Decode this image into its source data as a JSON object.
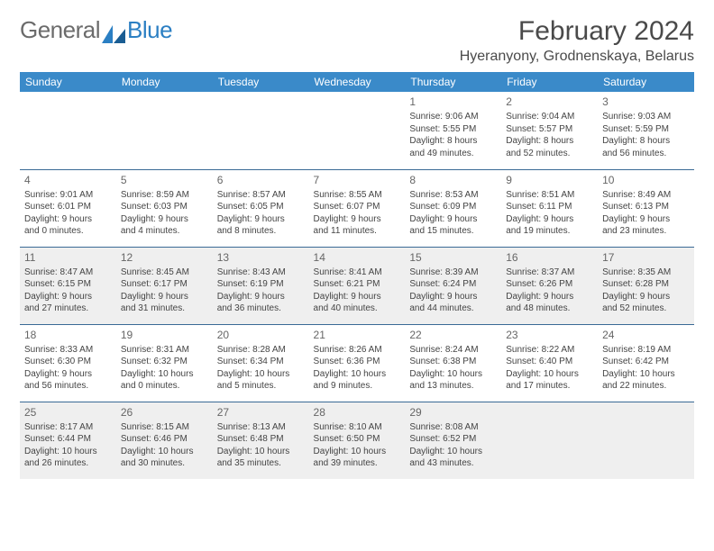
{
  "logo": {
    "text1": "General",
    "text2": "Blue"
  },
  "title": "February 2024",
  "location": "Hyeranyony, Grodnenskaya, Belarus",
  "colors": {
    "header_bg": "#3a8ac9",
    "header_text": "#ffffff",
    "cell_border": "#3a6a95",
    "shaded_bg": "#efefef",
    "text": "#444444",
    "logo_gray": "#6b6b6b",
    "logo_blue": "#2b7fc3"
  },
  "fonts": {
    "title_size": 30,
    "location_size": 16,
    "dayhead_size": 12,
    "cell_size": 10
  },
  "dayHeaders": [
    "Sunday",
    "Monday",
    "Tuesday",
    "Wednesday",
    "Thursday",
    "Friday",
    "Saturday"
  ],
  "weeks": [
    [
      null,
      null,
      null,
      null,
      {
        "n": "1",
        "sr": "Sunrise: 9:06 AM",
        "ss": "Sunset: 5:55 PM",
        "d1": "Daylight: 8 hours",
        "d2": "and 49 minutes."
      },
      {
        "n": "2",
        "sr": "Sunrise: 9:04 AM",
        "ss": "Sunset: 5:57 PM",
        "d1": "Daylight: 8 hours",
        "d2": "and 52 minutes."
      },
      {
        "n": "3",
        "sr": "Sunrise: 9:03 AM",
        "ss": "Sunset: 5:59 PM",
        "d1": "Daylight: 8 hours",
        "d2": "and 56 minutes."
      }
    ],
    [
      {
        "n": "4",
        "sr": "Sunrise: 9:01 AM",
        "ss": "Sunset: 6:01 PM",
        "d1": "Daylight: 9 hours",
        "d2": "and 0 minutes."
      },
      {
        "n": "5",
        "sr": "Sunrise: 8:59 AM",
        "ss": "Sunset: 6:03 PM",
        "d1": "Daylight: 9 hours",
        "d2": "and 4 minutes."
      },
      {
        "n": "6",
        "sr": "Sunrise: 8:57 AM",
        "ss": "Sunset: 6:05 PM",
        "d1": "Daylight: 9 hours",
        "d2": "and 8 minutes."
      },
      {
        "n": "7",
        "sr": "Sunrise: 8:55 AM",
        "ss": "Sunset: 6:07 PM",
        "d1": "Daylight: 9 hours",
        "d2": "and 11 minutes."
      },
      {
        "n": "8",
        "sr": "Sunrise: 8:53 AM",
        "ss": "Sunset: 6:09 PM",
        "d1": "Daylight: 9 hours",
        "d2": "and 15 minutes."
      },
      {
        "n": "9",
        "sr": "Sunrise: 8:51 AM",
        "ss": "Sunset: 6:11 PM",
        "d1": "Daylight: 9 hours",
        "d2": "and 19 minutes."
      },
      {
        "n": "10",
        "sr": "Sunrise: 8:49 AM",
        "ss": "Sunset: 6:13 PM",
        "d1": "Daylight: 9 hours",
        "d2": "and 23 minutes."
      }
    ],
    [
      {
        "n": "11",
        "sr": "Sunrise: 8:47 AM",
        "ss": "Sunset: 6:15 PM",
        "d1": "Daylight: 9 hours",
        "d2": "and 27 minutes."
      },
      {
        "n": "12",
        "sr": "Sunrise: 8:45 AM",
        "ss": "Sunset: 6:17 PM",
        "d1": "Daylight: 9 hours",
        "d2": "and 31 minutes."
      },
      {
        "n": "13",
        "sr": "Sunrise: 8:43 AM",
        "ss": "Sunset: 6:19 PM",
        "d1": "Daylight: 9 hours",
        "d2": "and 36 minutes."
      },
      {
        "n": "14",
        "sr": "Sunrise: 8:41 AM",
        "ss": "Sunset: 6:21 PM",
        "d1": "Daylight: 9 hours",
        "d2": "and 40 minutes."
      },
      {
        "n": "15",
        "sr": "Sunrise: 8:39 AM",
        "ss": "Sunset: 6:24 PM",
        "d1": "Daylight: 9 hours",
        "d2": "and 44 minutes."
      },
      {
        "n": "16",
        "sr": "Sunrise: 8:37 AM",
        "ss": "Sunset: 6:26 PM",
        "d1": "Daylight: 9 hours",
        "d2": "and 48 minutes."
      },
      {
        "n": "17",
        "sr": "Sunrise: 8:35 AM",
        "ss": "Sunset: 6:28 PM",
        "d1": "Daylight: 9 hours",
        "d2": "and 52 minutes."
      }
    ],
    [
      {
        "n": "18",
        "sr": "Sunrise: 8:33 AM",
        "ss": "Sunset: 6:30 PM",
        "d1": "Daylight: 9 hours",
        "d2": "and 56 minutes."
      },
      {
        "n": "19",
        "sr": "Sunrise: 8:31 AM",
        "ss": "Sunset: 6:32 PM",
        "d1": "Daylight: 10 hours",
        "d2": "and 0 minutes."
      },
      {
        "n": "20",
        "sr": "Sunrise: 8:28 AM",
        "ss": "Sunset: 6:34 PM",
        "d1": "Daylight: 10 hours",
        "d2": "and 5 minutes."
      },
      {
        "n": "21",
        "sr": "Sunrise: 8:26 AM",
        "ss": "Sunset: 6:36 PM",
        "d1": "Daylight: 10 hours",
        "d2": "and 9 minutes."
      },
      {
        "n": "22",
        "sr": "Sunrise: 8:24 AM",
        "ss": "Sunset: 6:38 PM",
        "d1": "Daylight: 10 hours",
        "d2": "and 13 minutes."
      },
      {
        "n": "23",
        "sr": "Sunrise: 8:22 AM",
        "ss": "Sunset: 6:40 PM",
        "d1": "Daylight: 10 hours",
        "d2": "and 17 minutes."
      },
      {
        "n": "24",
        "sr": "Sunrise: 8:19 AM",
        "ss": "Sunset: 6:42 PM",
        "d1": "Daylight: 10 hours",
        "d2": "and 22 minutes."
      }
    ],
    [
      {
        "n": "25",
        "sr": "Sunrise: 8:17 AM",
        "ss": "Sunset: 6:44 PM",
        "d1": "Daylight: 10 hours",
        "d2": "and 26 minutes."
      },
      {
        "n": "26",
        "sr": "Sunrise: 8:15 AM",
        "ss": "Sunset: 6:46 PM",
        "d1": "Daylight: 10 hours",
        "d2": "and 30 minutes."
      },
      {
        "n": "27",
        "sr": "Sunrise: 8:13 AM",
        "ss": "Sunset: 6:48 PM",
        "d1": "Daylight: 10 hours",
        "d2": "and 35 minutes."
      },
      {
        "n": "28",
        "sr": "Sunrise: 8:10 AM",
        "ss": "Sunset: 6:50 PM",
        "d1": "Daylight: 10 hours",
        "d2": "and 39 minutes."
      },
      {
        "n": "29",
        "sr": "Sunrise: 8:08 AM",
        "ss": "Sunset: 6:52 PM",
        "d1": "Daylight: 10 hours",
        "d2": "and 43 minutes."
      },
      null,
      null
    ]
  ],
  "shadedRows": [
    2,
    4
  ]
}
